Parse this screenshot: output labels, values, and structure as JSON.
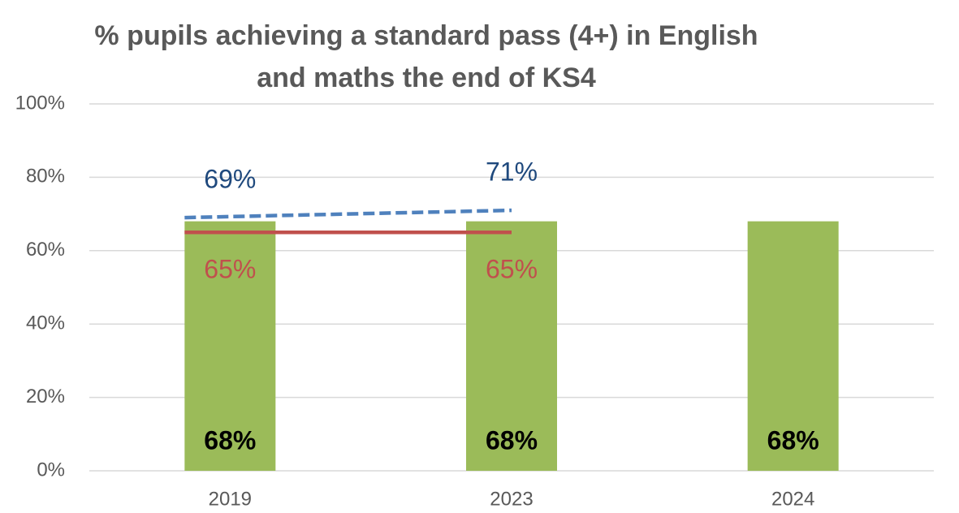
{
  "chart_data": {
    "type": "bar",
    "title": [
      "% pupils achieving a standard pass (4+) in English",
      "and maths the end of KS4"
    ],
    "categories": [
      "2019",
      "2023",
      "2024"
    ],
    "ylim": [
      0,
      100
    ],
    "yticks": [
      {
        "value": 0,
        "label": "0%"
      },
      {
        "value": 20,
        "label": "20%"
      },
      {
        "value": 40,
        "label": "40%"
      },
      {
        "value": 60,
        "label": "60%"
      },
      {
        "value": 80,
        "label": "80%"
      },
      {
        "value": 100,
        "label": "100%"
      }
    ],
    "grid": true,
    "series": [
      {
        "type": "bar",
        "color": "#9bbb59",
        "label_color": "#000000",
        "values": [
          68,
          68,
          68
        ],
        "value_labels": [
          "68%",
          "68%",
          "68%"
        ]
      },
      {
        "type": "line",
        "dashed": true,
        "color": "#4f81bd",
        "label_color": "#1f497d",
        "values": [
          69,
          71,
          null
        ],
        "value_labels": [
          "69%",
          "71%",
          null
        ]
      },
      {
        "type": "line",
        "dashed": false,
        "color": "#c0504d",
        "label_color": "#c0504d",
        "values": [
          65,
          65,
          null
        ],
        "value_labels": [
          "65%",
          "65%",
          null
        ]
      }
    ]
  }
}
